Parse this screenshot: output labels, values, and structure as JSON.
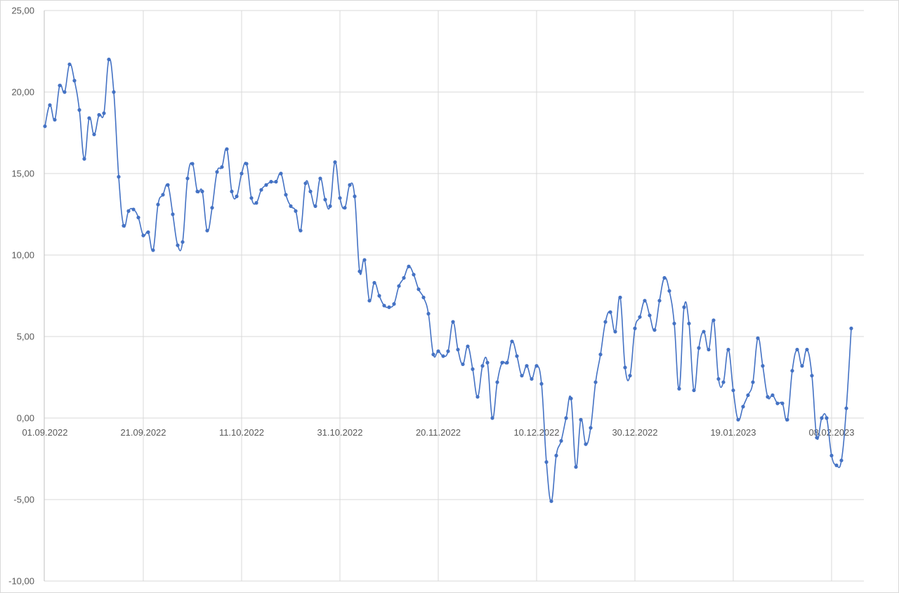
{
  "chart_data": {
    "type": "line",
    "title": "",
    "xlabel": "",
    "ylabel": "",
    "ylim": [
      -10,
      25
    ],
    "y_ticks": [
      "25,00",
      "20,00",
      "15,00",
      "10,00",
      "5,00",
      "0,00",
      "-5,00",
      "-10,00"
    ],
    "x_ticks": [
      "01.09.2022",
      "21.09.2022",
      "11.10.2022",
      "31.10.2022",
      "20.11.2022",
      "10.12.2022",
      "30.12.2022",
      "19.01.2023",
      "08.02.2023"
    ],
    "grid": true,
    "legend": "none",
    "color": "#4472c4",
    "start_date": "01.09.2022",
    "series": [
      {
        "values": [
          17.9,
          19.2,
          18.3,
          20.4,
          20.0,
          21.7,
          20.7,
          18.9,
          15.9,
          18.4,
          17.4,
          18.6,
          18.7,
          22.0,
          20.0,
          14.8,
          11.8,
          12.7,
          12.8,
          12.3,
          11.2,
          11.4,
          10.3,
          13.1,
          13.7,
          14.3,
          12.5,
          10.6,
          10.8,
          14.7,
          15.6,
          13.9,
          13.9,
          11.5,
          12.9,
          15.1,
          15.4,
          16.5,
          13.9,
          13.6,
          15.0,
          15.6,
          13.5,
          13.2,
          14.0,
          14.3,
          14.5,
          14.5,
          15.0,
          13.7,
          13.0,
          12.7,
          11.5,
          14.4,
          13.9,
          13.0,
          14.7,
          13.4,
          13.0,
          15.7,
          13.5,
          12.9,
          14.3,
          13.6,
          9.0,
          9.7,
          7.2,
          8.3,
          7.5,
          6.9,
          6.8,
          7.0,
          8.1,
          8.6,
          9.3,
          8.8,
          7.9,
          7.4,
          6.4,
          3.9,
          4.1,
          3.8,
          4.1,
          5.9,
          4.2,
          3.3,
          4.4,
          3.0,
          1.3,
          3.2,
          3.4,
          0.0,
          2.2,
          3.4,
          3.4,
          4.7,
          3.8,
          2.6,
          3.2,
          2.4,
          3.2,
          2.1,
          -2.7,
          -5.1,
          -2.3,
          -1.4,
          0.0,
          1.2,
          -3.0,
          -0.1,
          -1.6,
          -0.6,
          2.2,
          3.9,
          5.9,
          6.5,
          5.3,
          7.4,
          3.1,
          2.6,
          5.5,
          6.2,
          7.2,
          6.3,
          5.4,
          7.2,
          8.6,
          7.8,
          5.8,
          1.8,
          6.8,
          5.8,
          1.7,
          4.3,
          5.3,
          4.2,
          6.0,
          2.4,
          2.2,
          4.2,
          1.7,
          -0.1,
          0.7,
          1.4,
          2.2,
          4.9,
          3.2,
          1.3,
          1.4,
          0.9,
          0.9,
          -0.1,
          2.9,
          4.2,
          3.2,
          4.2,
          2.6,
          -1.2,
          0.0,
          0.0,
          -2.3,
          -2.9,
          -2.6,
          0.6,
          5.5
        ]
      }
    ]
  }
}
